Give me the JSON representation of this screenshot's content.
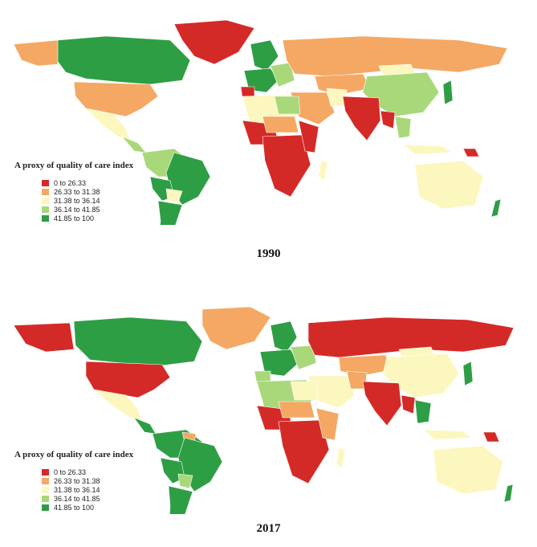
{
  "legend": {
    "title": "A proxy of quality of care index",
    "items": [
      {
        "label": "0 to 26.33",
        "color": "#d42a27"
      },
      {
        "label": "26.33 to 31.38",
        "color": "#f4a864"
      },
      {
        "label": "31.38 to 36.14",
        "color": "#fcf7bf"
      },
      {
        "label": "36.14 to 41.85",
        "color": "#a8d87a"
      },
      {
        "label": "41.85 to 100",
        "color": "#2e9e45"
      }
    ]
  },
  "panels": [
    {
      "year": "1990"
    },
    {
      "year": "2017"
    }
  ]
}
